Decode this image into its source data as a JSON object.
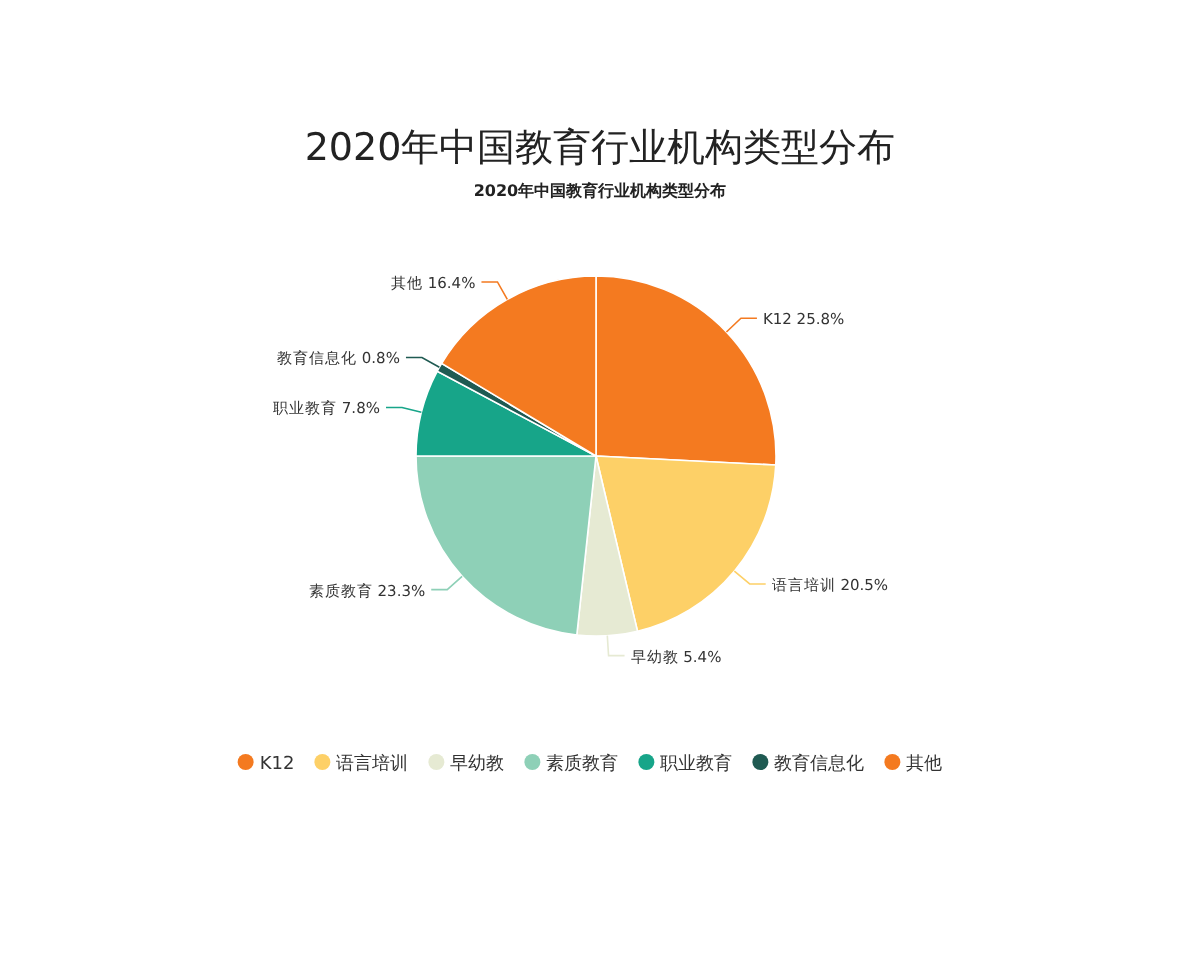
{
  "chart_data": {
    "type": "pie",
    "title": "2020年中国教育行业机构类型分布",
    "subtitle": "2020年中国教育行业机构类型分布",
    "categories": [
      "K12",
      "语言培训",
      "早幼教",
      "素质教育",
      "职业教育",
      "教育信息化",
      "其他"
    ],
    "values": [
      25.8,
      20.5,
      5.4,
      23.3,
      7.8,
      0.8,
      16.4
    ],
    "colors": [
      "#f47a20",
      "#fdd067",
      "#e6ead3",
      "#8ed0b7",
      "#17a589",
      "#1f5a52",
      "#f47a20"
    ],
    "value_labels": [
      "K12 25.8%",
      "语言培训 20.5%",
      "早幼教 5.4%",
      "素质教育 23.3%",
      "职业教育 7.8%",
      "教育信息化 0.8%",
      "其他 16.4%"
    ],
    "legend": "bottom"
  }
}
